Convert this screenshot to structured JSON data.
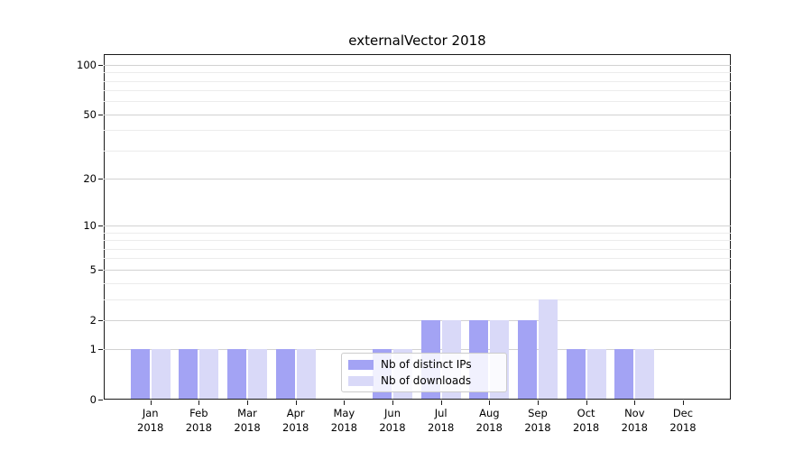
{
  "title": "externalVector 2018",
  "chart_data": {
    "type": "bar",
    "title": "externalVector 2018",
    "categories": [
      "Jan 2018",
      "Feb 2018",
      "Mar 2018",
      "Apr 2018",
      "May 2018",
      "Jun 2018",
      "Jul 2018",
      "Aug 2018",
      "Sep 2018",
      "Oct 2018",
      "Nov 2018",
      "Dec 2018"
    ],
    "series": [
      {
        "name": "Nb of distinct IPs",
        "color": "#a3a3f4",
        "values": [
          1,
          1,
          1,
          1,
          0,
          1,
          2,
          2,
          2,
          1,
          1,
          0
        ]
      },
      {
        "name": "Nb of downloads",
        "color": "#d9d9f8",
        "values": [
          1,
          1,
          1,
          1,
          0,
          1,
          2,
          2,
          3,
          1,
          1,
          0
        ]
      }
    ],
    "xlabel": "",
    "ylabel": "",
    "yticks": [
      0,
      1,
      2,
      5,
      10,
      20,
      50,
      100
    ],
    "minor_yticks": [
      3,
      4,
      6,
      7,
      8,
      9,
      30,
      40,
      60,
      70,
      80,
      90
    ],
    "ylim": [
      0,
      116
    ],
    "scale": "log1p",
    "grid": "horizontal",
    "legend_position": "lower center"
  },
  "legend": {
    "items": [
      {
        "label": "Nb of distinct IPs",
        "color": "#a3a3f4"
      },
      {
        "label": "Nb of downloads",
        "color": "#d9d9f8"
      }
    ]
  }
}
